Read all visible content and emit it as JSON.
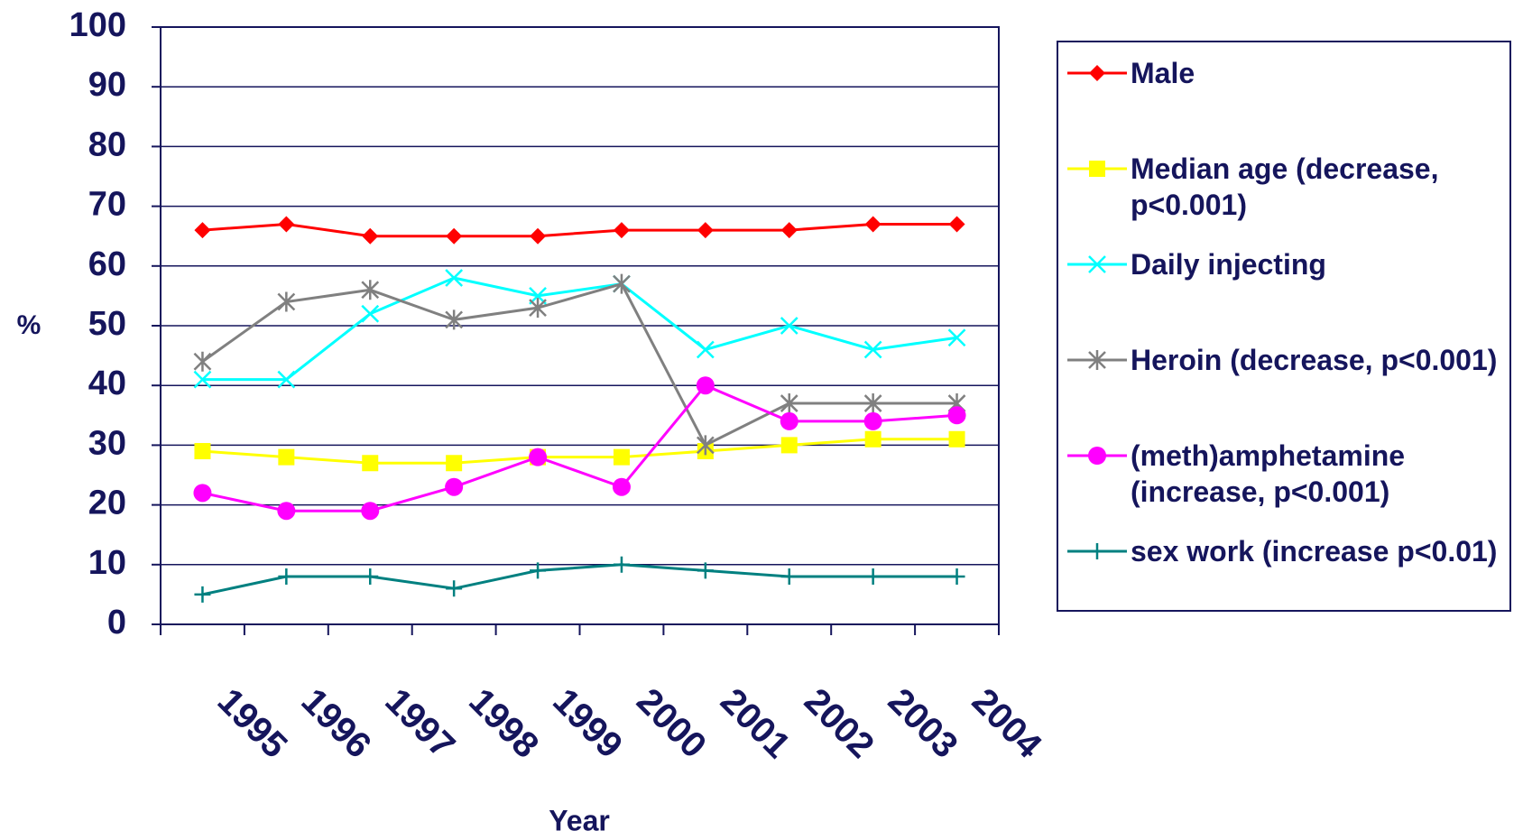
{
  "chart_data": {
    "type": "line",
    "x_label": "Year",
    "y_label": "%",
    "categories": [
      "1995",
      "1996",
      "1997",
      "1998",
      "1999",
      "2000",
      "2001",
      "2002",
      "2003",
      "2004"
    ],
    "ylim": [
      0,
      100
    ],
    "yticks": [
      0,
      10,
      20,
      30,
      40,
      50,
      60,
      70,
      80,
      90,
      100
    ],
    "grid": true,
    "series": [
      {
        "name": "Male",
        "color": "#ff0000",
        "marker": "diamond",
        "values": [
          66,
          67,
          65,
          65,
          65,
          66,
          66,
          66,
          67,
          67
        ]
      },
      {
        "name": "Median age (decrease, p<0.001)",
        "color": "#ffff00",
        "marker": "square",
        "values": [
          29,
          28,
          27,
          27,
          28,
          28,
          29,
          30,
          31,
          31
        ]
      },
      {
        "name": "Daily injecting",
        "color": "#00ffff",
        "marker": "x",
        "values": [
          41,
          41,
          52,
          58,
          55,
          57,
          46,
          50,
          46,
          48
        ]
      },
      {
        "name": "Heroin (decrease, p<0.001)",
        "color": "#808080",
        "marker": "star",
        "values": [
          44,
          54,
          56,
          51,
          53,
          57,
          30,
          37,
          37,
          37
        ]
      },
      {
        "name": "(meth)amphetamine (increase, p<0.001)",
        "color": "#ff00ff",
        "marker": "circle",
        "values": [
          22,
          19,
          19,
          23,
          28,
          23,
          40,
          34,
          34,
          35
        ]
      },
      {
        "name": "sex work (increase p<0.01)",
        "color": "#008080",
        "marker": "plus",
        "values": [
          5,
          8,
          8,
          6,
          9,
          10,
          9,
          8,
          8,
          8
        ]
      }
    ]
  }
}
